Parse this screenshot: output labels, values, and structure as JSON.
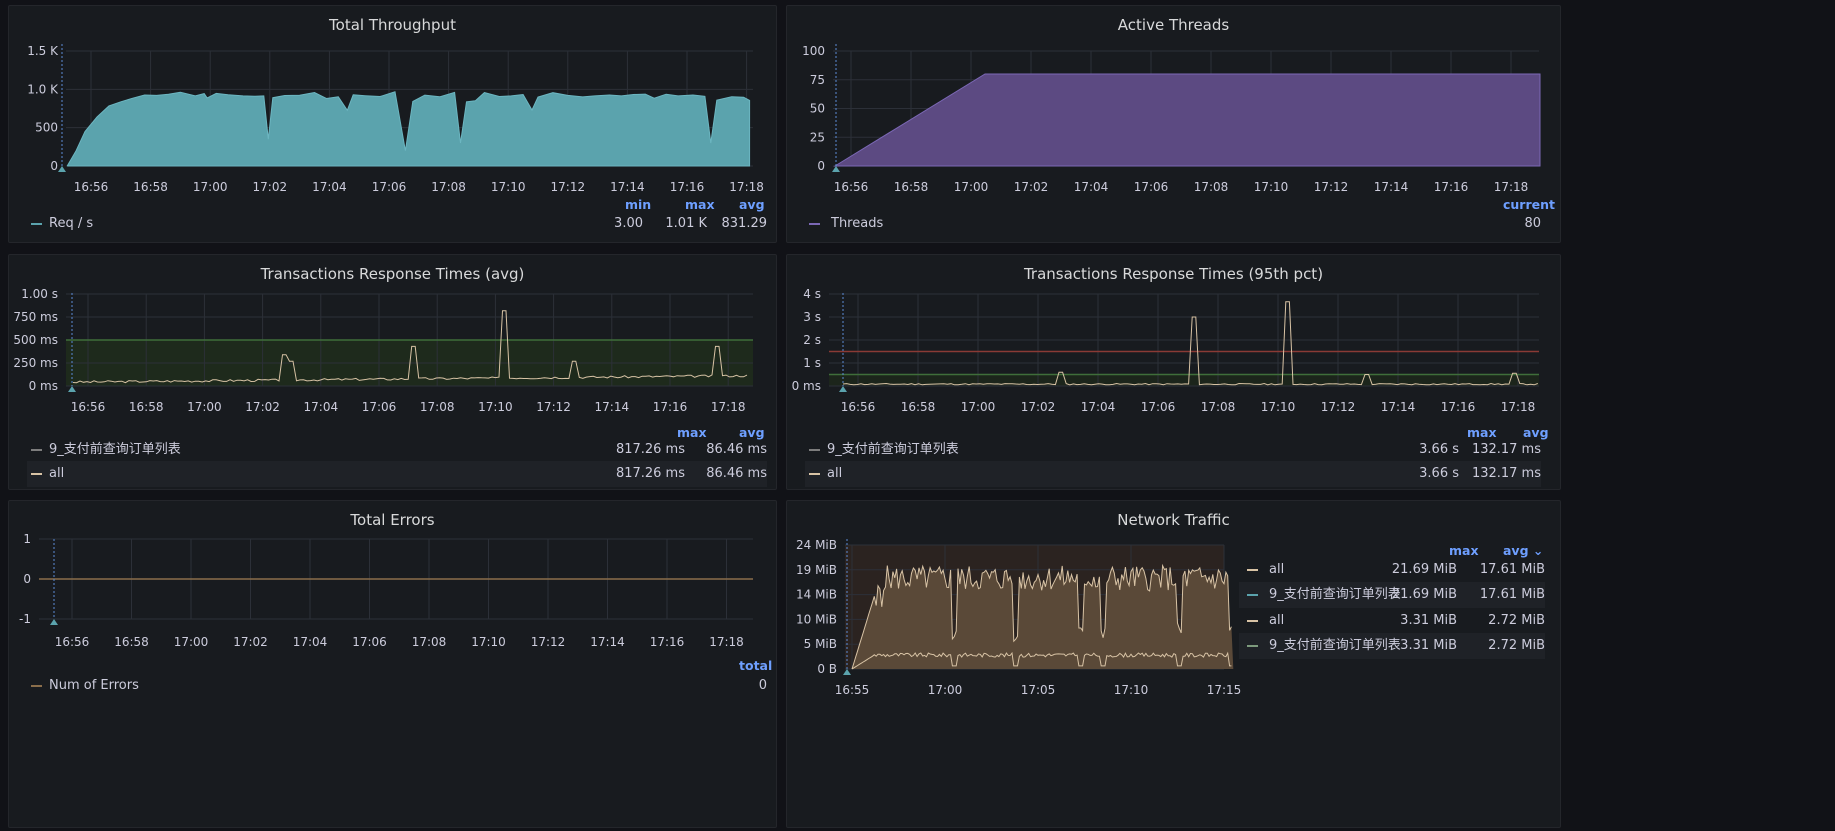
{
  "colors": {
    "throughput": "#5ba3ad",
    "threads": "#5c4a82",
    "response": "#d8c3a5",
    "threshold_green": "#3f6e3a",
    "threshold_red": "#8a3a35",
    "network": "#d8c3a5",
    "grid": "#2c3038",
    "axis_text": "#ccccdc",
    "legend_header": "#6e9fff"
  },
  "panels": {
    "throughput": {
      "title": "Total Throughput",
      "headers": [
        "min",
        "max",
        "avg"
      ],
      "rows": [
        {
          "name": "Req / s",
          "color": "#5ba3ad",
          "values": [
            "3.00",
            "1.01 K",
            "831.29"
          ]
        }
      ]
    },
    "threads": {
      "title": "Active Threads",
      "headers": [
        "current"
      ],
      "rows": [
        {
          "name": "Threads",
          "color": "#7b68b5",
          "values": [
            "80"
          ]
        }
      ]
    },
    "resp_avg": {
      "title": "Transactions Response Times (avg)",
      "headers": [
        "max",
        "avg"
      ],
      "rows": [
        {
          "name": "9_支付前查询订单列表",
          "color": "#7d7d7d",
          "values": [
            "817.26 ms",
            "86.46 ms"
          ]
        },
        {
          "name": "all",
          "color": "#d8c3a5",
          "values": [
            "817.26 ms",
            "86.46 ms"
          ]
        }
      ]
    },
    "resp_p95": {
      "title": "Transactions Response Times (95th pct)",
      "headers": [
        "max",
        "avg"
      ],
      "rows": [
        {
          "name": "9_支付前查询订单列表",
          "color": "#7d7d7d",
          "values": [
            "3.66 s",
            "132.17 ms"
          ]
        },
        {
          "name": "all",
          "color": "#d8c3a5",
          "values": [
            "3.66 s",
            "132.17 ms"
          ]
        }
      ]
    },
    "errors": {
      "title": "Total Errors",
      "headers": [
        "total"
      ],
      "rows": [
        {
          "name": "Num of Errors",
          "color": "#8a6e4b",
          "values": [
            "0"
          ]
        }
      ]
    },
    "network": {
      "title": "Network Traffic",
      "headers": [
        "max",
        "avg ⌄"
      ],
      "rows": [
        {
          "name": "all",
          "color": "#d8c3a5",
          "values": [
            "21.69 MiB",
            "17.61 MiB"
          ]
        },
        {
          "name": "9_支付前查询订单列表",
          "color": "#5ba3ad",
          "values": [
            "21.69 MiB",
            "17.61 MiB"
          ]
        },
        {
          "name": "all",
          "color": "#d8c3a5",
          "values": [
            "3.31 MiB",
            "2.72 MiB"
          ]
        },
        {
          "name": "9_支付前查询订单列表",
          "color": "#7d9a7d",
          "values": [
            "3.31 MiB",
            "2.72 MiB"
          ]
        }
      ]
    }
  },
  "chart_data": [
    {
      "id": "throughput",
      "type": "area",
      "title": "Total Throughput",
      "xticks": [
        "16:56",
        "16:58",
        "17:00",
        "17:02",
        "17:04",
        "17:06",
        "17:08",
        "17:10",
        "17:12",
        "17:14",
        "17:16",
        "17:18"
      ],
      "yticks": [
        "0",
        "500",
        "1.0 K",
        "1.5 K"
      ],
      "ylim": [
        0,
        1500
      ],
      "x_minutes_range": [
        -0.5,
        22.9
      ],
      "series": [
        {
          "name": "Req / s",
          "points": [
            [
              0,
              0
            ],
            [
              0.3,
              200
            ],
            [
              0.6,
              450
            ],
            [
              1,
              640
            ],
            [
              1.4,
              780
            ],
            [
              1.8,
              860
            ],
            [
              2.2,
              900
            ],
            [
              2.6,
              930
            ],
            [
              3,
              920
            ],
            [
              3.4,
              960
            ],
            [
              3.8,
              940
            ],
            [
              4.3,
              910
            ],
            [
              4.6,
              950
            ],
            [
              4.7,
              900
            ],
            [
              5,
              930
            ],
            [
              5.4,
              920
            ],
            [
              5.9,
              940
            ],
            [
              6.3,
              910
            ],
            [
              6.6,
              930
            ],
            [
              6.75,
              350
            ],
            [
              6.9,
              880
            ],
            [
              7.3,
              940
            ],
            [
              7.8,
              920
            ],
            [
              8.3,
              960
            ],
            [
              8.7,
              900
            ],
            [
              9.1,
              930
            ],
            [
              9.4,
              700
            ],
            [
              9.6,
              900
            ],
            [
              10,
              940
            ],
            [
              10.5,
              910
            ],
            [
              11,
              940
            ],
            [
              11.35,
              200
            ],
            [
              11.6,
              860
            ],
            [
              12,
              930
            ],
            [
              12.5,
              900
            ],
            [
              13,
              950
            ],
            [
              13.2,
              300
            ],
            [
              13.4,
              850
            ],
            [
              13.7,
              870
            ],
            [
              14,
              930
            ],
            [
              14.5,
              910
            ],
            [
              14.9,
              930
            ],
            [
              15.3,
              930
            ],
            [
              15.6,
              740
            ],
            [
              15.8,
              920
            ],
            [
              16.3,
              940
            ],
            [
              16.8,
              930
            ],
            [
              17.3,
              910
            ],
            [
              17.7,
              940
            ],
            [
              18.2,
              900
            ],
            [
              18.6,
              930
            ],
            [
              19,
              910
            ],
            [
              19.4,
              940
            ],
            [
              19.7,
              900
            ],
            [
              20.1,
              930
            ],
            [
              20.5,
              920
            ],
            [
              21,
              910
            ],
            [
              21.4,
              900
            ],
            [
              21.6,
              300
            ],
            [
              21.8,
              880
            ],
            [
              22.3,
              920
            ],
            [
              22.7,
              900
            ],
            [
              22.9,
              880
            ]
          ]
        }
      ]
    },
    {
      "id": "threads",
      "type": "area",
      "title": "Active Threads",
      "xticks": [
        "16:56",
        "16:58",
        "17:00",
        "17:02",
        "17:04",
        "17:06",
        "17:08",
        "17:10",
        "17:12",
        "17:14",
        "17:16",
        "17:18"
      ],
      "yticks": [
        "0",
        "25",
        "50",
        "75",
        "100"
      ],
      "ylim": [
        0,
        100
      ],
      "series": [
        {
          "name": "Threads",
          "points": [
            [
              0,
              0
            ],
            [
              5,
              80
            ],
            [
              23.5,
              80
            ]
          ]
        }
      ]
    },
    {
      "id": "resp_avg",
      "type": "line",
      "title": "Transactions Response Times (avg)",
      "xticks": [
        "16:56",
        "16:58",
        "17:00",
        "17:02",
        "17:04",
        "17:06",
        "17:08",
        "17:10",
        "17:12",
        "17:14",
        "17:16",
        "17:18"
      ],
      "yticks": [
        "0 ms",
        "250 ms",
        "500 ms",
        "750 ms",
        "1.00 s"
      ],
      "ylim": [
        0,
        1000
      ],
      "thresholds": [
        500
      ],
      "series": [
        {
          "name": "all",
          "spikes": [
            [
              7.3,
              340
            ],
            [
              7.5,
              270
            ],
            [
              11.7,
              430
            ],
            [
              14.8,
              817
            ],
            [
              17.2,
              270
            ],
            [
              22.2,
              430
            ]
          ]
        }
      ]
    },
    {
      "id": "resp_p95",
      "type": "line",
      "title": "Transactions Response Times (95th pct)",
      "xticks": [
        "16:56",
        "16:58",
        "17:00",
        "17:02",
        "17:04",
        "17:06",
        "17:08",
        "17:10",
        "17:12",
        "17:14",
        "17:16",
        "17:18"
      ],
      "yticks": [
        "0 ms",
        "1 s",
        "2 s",
        "3 s",
        "4 s"
      ],
      "ylim": [
        0,
        4
      ],
      "thresholds": [
        0.5,
        1.5
      ],
      "series": [
        {
          "name": "all",
          "spikes": [
            [
              7.3,
              0.6
            ],
            [
              11.75,
              3.0
            ],
            [
              14.8,
              3.66
            ],
            [
              17.5,
              0.5
            ],
            [
              22.4,
              0.55
            ]
          ]
        }
      ]
    },
    {
      "id": "errors",
      "type": "line",
      "title": "Total Errors",
      "xticks": [
        "16:56",
        "16:58",
        "17:00",
        "17:02",
        "17:04",
        "17:06",
        "17:08",
        "17:10",
        "17:12",
        "17:14",
        "17:16",
        "17:18"
      ],
      "yticks": [
        "-1",
        "0",
        "1"
      ],
      "ylim": [
        -1,
        1
      ],
      "series": [
        {
          "name": "Num of Errors",
          "values": [
            0
          ]
        }
      ]
    },
    {
      "id": "network",
      "type": "line",
      "title": "Network Traffic",
      "xticks": [
        "16:55",
        "17:00",
        "17:05",
        "17:10",
        "17:15"
      ],
      "yticks": [
        "0 B",
        "5 MiB",
        "10 MiB",
        "14 MiB",
        "19 MiB",
        "24 MiB"
      ],
      "ylim": [
        0,
        24
      ],
      "series": [
        {
          "name": "all",
          "level": 17.6,
          "max": 21.69
        },
        {
          "name": "all",
          "level": 2.7,
          "max": 3.31
        }
      ]
    }
  ]
}
